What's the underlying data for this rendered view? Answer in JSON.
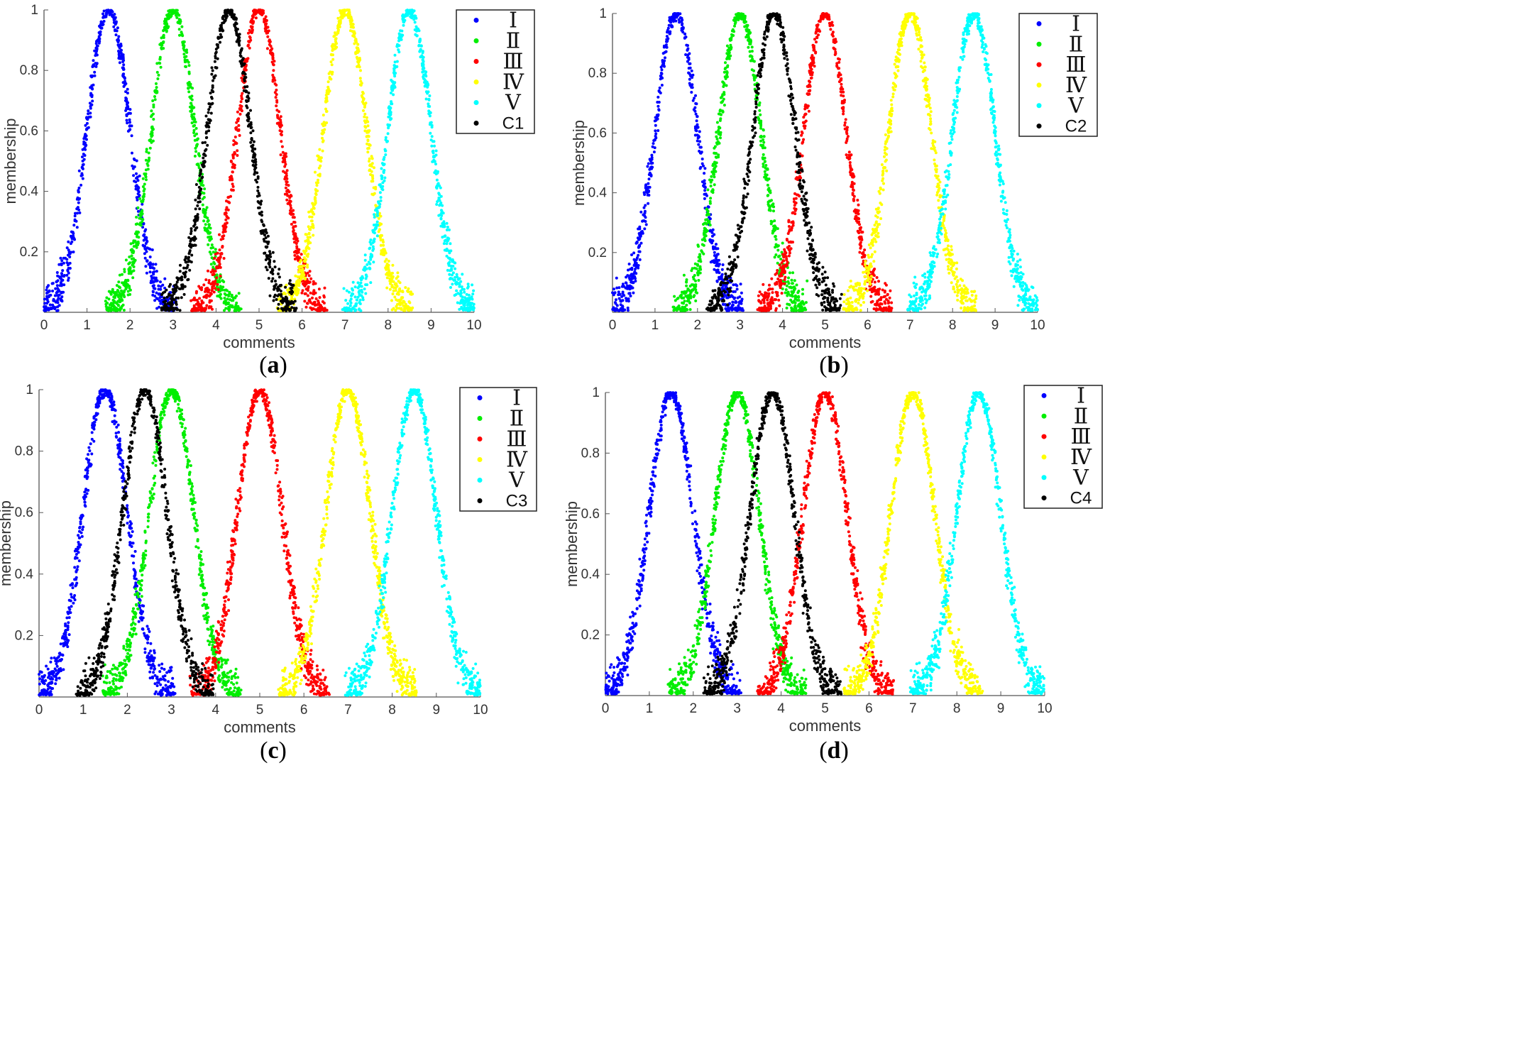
{
  "figure": {
    "panels": [
      {
        "caption_letter": "a",
        "legend_label": "C1",
        "black_peak": 4.3
      },
      {
        "caption_letter": "b",
        "legend_label": "C2",
        "black_peak": 3.8
      },
      {
        "caption_letter": "c",
        "legend_label": "C3",
        "black_peak": 2.4
      },
      {
        "caption_letter": "d",
        "legend_label": "C4",
        "black_peak": 3.8
      }
    ]
  },
  "colors": {
    "I": "#0000ff",
    "II": "#00ee00",
    "III": "#ff0000",
    "IV": "#ffff00",
    "V": "#00ffff",
    "C": "#000000",
    "axis": "#555555",
    "text": "#333333"
  },
  "chart_data": [
    {
      "type": "scatter",
      "title": "(a)",
      "xlabel": "comments",
      "ylabel": "membership",
      "xlim": [
        0,
        10
      ],
      "ylim": [
        0,
        1
      ],
      "xticks": [
        "0",
        "1",
        "2",
        "3",
        "4",
        "5",
        "6",
        "7",
        "8",
        "9",
        "10"
      ],
      "yticks": [
        "0.2",
        "0.4",
        "0.6",
        "0.8",
        "1"
      ],
      "legend": [
        "Ⅰ",
        "Ⅱ",
        "Ⅲ",
        "Ⅳ",
        "Ⅴ",
        "C1"
      ],
      "series": [
        {
          "name": "Ⅰ",
          "color": "#0000ff",
          "peak_x": 1.5,
          "peak_y": 1.0
        },
        {
          "name": "Ⅱ",
          "color": "#00ee00",
          "peak_x": 3.0,
          "peak_y": 1.0
        },
        {
          "name": "Ⅲ",
          "color": "#ff0000",
          "peak_x": 5.0,
          "peak_y": 1.0
        },
        {
          "name": "Ⅳ",
          "color": "#ffff00",
          "peak_x": 7.0,
          "peak_y": 1.0
        },
        {
          "name": "Ⅴ",
          "color": "#00ffff",
          "peak_x": 8.5,
          "peak_y": 1.0
        },
        {
          "name": "C1",
          "color": "#000000",
          "peak_x": 4.3,
          "peak_y": 1.0
        }
      ]
    },
    {
      "type": "scatter",
      "title": "(b)",
      "xlabel": "comments",
      "ylabel": "membership",
      "xlim": [
        0,
        10
      ],
      "ylim": [
        0,
        1
      ],
      "xticks": [
        "0",
        "1",
        "2",
        "3",
        "4",
        "5",
        "6",
        "7",
        "8",
        "9",
        "10"
      ],
      "yticks": [
        "0.2",
        "0.4",
        "0.6",
        "0.8",
        "1"
      ],
      "legend": [
        "Ⅰ",
        "Ⅱ",
        "Ⅲ",
        "Ⅳ",
        "Ⅴ",
        "C2"
      ],
      "series": [
        {
          "name": "Ⅰ",
          "color": "#0000ff",
          "peak_x": 1.5,
          "peak_y": 1.0
        },
        {
          "name": "Ⅱ",
          "color": "#00ee00",
          "peak_x": 3.0,
          "peak_y": 1.0
        },
        {
          "name": "Ⅲ",
          "color": "#ff0000",
          "peak_x": 5.0,
          "peak_y": 1.0
        },
        {
          "name": "Ⅳ",
          "color": "#ffff00",
          "peak_x": 7.0,
          "peak_y": 1.0
        },
        {
          "name": "Ⅴ",
          "color": "#00ffff",
          "peak_x": 8.5,
          "peak_y": 1.0
        },
        {
          "name": "C2",
          "color": "#000000",
          "peak_x": 3.8,
          "peak_y": 1.0
        }
      ]
    },
    {
      "type": "scatter",
      "title": "(c)",
      "xlabel": "comments",
      "ylabel": "membership",
      "xlim": [
        0,
        10
      ],
      "ylim": [
        0,
        1
      ],
      "xticks": [
        "0",
        "1",
        "2",
        "3",
        "4",
        "5",
        "6",
        "7",
        "8",
        "9",
        "10"
      ],
      "yticks": [
        "0.2",
        "0.4",
        "0.6",
        "0.8",
        "1"
      ],
      "legend": [
        "Ⅰ",
        "Ⅱ",
        "Ⅲ",
        "Ⅳ",
        "Ⅴ",
        "C3"
      ],
      "series": [
        {
          "name": "Ⅰ",
          "color": "#0000ff",
          "peak_x": 1.5,
          "peak_y": 1.0
        },
        {
          "name": "Ⅱ",
          "color": "#00ee00",
          "peak_x": 3.0,
          "peak_y": 1.0
        },
        {
          "name": "Ⅲ",
          "color": "#ff0000",
          "peak_x": 5.0,
          "peak_y": 1.0
        },
        {
          "name": "Ⅳ",
          "color": "#ffff00",
          "peak_x": 7.0,
          "peak_y": 1.0
        },
        {
          "name": "Ⅴ",
          "color": "#00ffff",
          "peak_x": 8.5,
          "peak_y": 1.0
        },
        {
          "name": "C3",
          "color": "#000000",
          "peak_x": 2.4,
          "peak_y": 1.0
        }
      ]
    },
    {
      "type": "scatter",
      "title": "(d)",
      "xlabel": "comments",
      "ylabel": "membership",
      "xlim": [
        0,
        10
      ],
      "ylim": [
        0,
        1
      ],
      "xticks": [
        "0",
        "1",
        "2",
        "3",
        "4",
        "5",
        "6",
        "7",
        "8",
        "9",
        "10"
      ],
      "yticks": [
        "0.2",
        "0.4",
        "0.6",
        "0.8",
        "1"
      ],
      "legend": [
        "Ⅰ",
        "Ⅱ",
        "Ⅲ",
        "Ⅳ",
        "Ⅴ",
        "C4"
      ],
      "series": [
        {
          "name": "Ⅰ",
          "color": "#0000ff",
          "peak_x": 1.5,
          "peak_y": 1.0
        },
        {
          "name": "Ⅱ",
          "color": "#00ee00",
          "peak_x": 3.0,
          "peak_y": 1.0
        },
        {
          "name": "Ⅲ",
          "color": "#ff0000",
          "peak_x": 5.0,
          "peak_y": 1.0
        },
        {
          "name": "Ⅳ",
          "color": "#ffff00",
          "peak_x": 7.0,
          "peak_y": 1.0
        },
        {
          "name": "Ⅴ",
          "color": "#00ffff",
          "peak_x": 8.5,
          "peak_y": 1.0
        },
        {
          "name": "C4",
          "color": "#000000",
          "peak_x": 3.8,
          "peak_y": 1.0
        }
      ]
    }
  ]
}
